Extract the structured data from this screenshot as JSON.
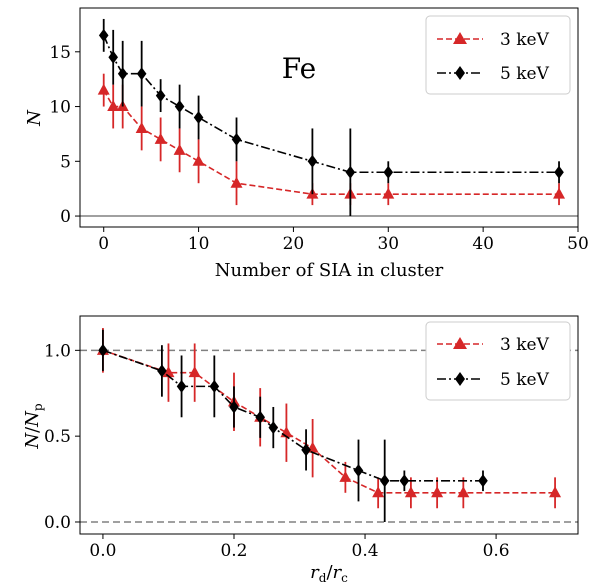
{
  "chart_data": [
    {
      "type": "line",
      "xlabel": "Number of SIA in cluster",
      "ylabel": "N",
      "xlim": [
        -2.5,
        50
      ],
      "ylim": [
        -1,
        19
      ],
      "xticks": [
        0,
        10,
        20,
        30,
        40,
        50
      ],
      "yticks": [
        0,
        5,
        10,
        15
      ],
      "annotation": "Fe",
      "hline": {
        "y": 0,
        "color": "#808080",
        "style": "solid"
      },
      "legend_position": "top-right",
      "grid": false,
      "series": [
        {
          "name": "3 keV",
          "color": "#d62728",
          "marker": "triangle",
          "linestyle": "dashed",
          "x": [
            0,
            1,
            2,
            4,
            6,
            8,
            10,
            14,
            22,
            26,
            30,
            48
          ],
          "y": [
            11.5,
            10,
            10,
            8,
            7,
            6,
            5,
            3,
            2,
            2,
            2,
            2
          ],
          "err": [
            1.5,
            2,
            2,
            2,
            2,
            2,
            2,
            2,
            1,
            1,
            1,
            1
          ]
        },
        {
          "name": "5 keV",
          "color": "#000000",
          "marker": "diamond",
          "linestyle": "dashdot",
          "x": [
            0,
            1,
            2,
            4,
            6,
            8,
            10,
            14,
            22,
            26,
            30,
            48
          ],
          "y": [
            16.5,
            14.5,
            13,
            13,
            11,
            10,
            9,
            7,
            5,
            4,
            4,
            4
          ],
          "err": [
            1.5,
            2.5,
            3,
            3,
            1.5,
            2,
            2,
            2,
            3,
            4,
            1,
            1
          ]
        }
      ]
    },
    {
      "type": "line",
      "xlabel": "r_d/r_c",
      "ylabel": "N/N_p",
      "xlim": [
        -0.035,
        0.725
      ],
      "ylim": [
        -0.07,
        1.2
      ],
      "xticks": [
        0.0,
        0.2,
        0.4,
        0.6
      ],
      "yticks": [
        0.0,
        0.5,
        1.0
      ],
      "xtick_labels": [
        "0.0",
        "0.2",
        "0.4",
        "0.6"
      ],
      "ytick_labels": [
        "0.0",
        "0.5",
        "1.0"
      ],
      "hlines": [
        {
          "y": 0,
          "color": "#808080",
          "style": "dashed"
        },
        {
          "y": 1,
          "color": "#808080",
          "style": "dashed"
        }
      ],
      "legend_position": "top-right",
      "grid": false,
      "series": [
        {
          "name": "3 keV",
          "color": "#d62728",
          "marker": "triangle",
          "linestyle": "dashed",
          "x": [
            0,
            0.1,
            0.14,
            0.2,
            0.24,
            0.28,
            0.32,
            0.37,
            0.42,
            0.47,
            0.51,
            0.55,
            0.69
          ],
          "y": [
            1.0,
            0.87,
            0.87,
            0.7,
            0.61,
            0.52,
            0.43,
            0.26,
            0.17,
            0.17,
            0.17,
            0.17,
            0.17
          ],
          "err": [
            0.13,
            0.17,
            0.17,
            0.17,
            0.17,
            0.17,
            0.17,
            0.09,
            0.09,
            0.09,
            0.09,
            0.09,
            0.09
          ]
        },
        {
          "name": "5 keV",
          "color": "#000000",
          "marker": "diamond",
          "linestyle": "dashdot",
          "x": [
            0,
            0.09,
            0.12,
            0.17,
            0.2,
            0.24,
            0.26,
            0.31,
            0.39,
            0.43,
            0.46,
            0.58
          ],
          "y": [
            1.0,
            0.88,
            0.79,
            0.79,
            0.67,
            0.61,
            0.55,
            0.42,
            0.3,
            0.24,
            0.24,
            0.24
          ],
          "err": [
            0.12,
            0.15,
            0.18,
            0.18,
            0.12,
            0.12,
            0.12,
            0.12,
            0.18,
            0.24,
            0.06,
            0.06
          ]
        }
      ]
    }
  ]
}
